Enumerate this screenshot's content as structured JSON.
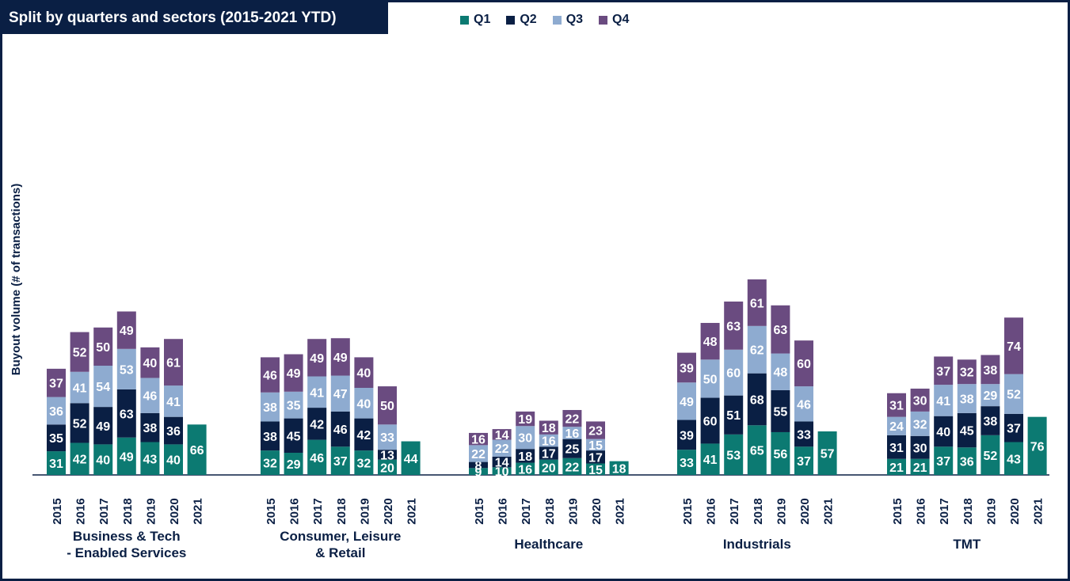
{
  "title": "Split by quarters and sectors (2015-2021 YTD)",
  "legend": [
    {
      "name": "Q1",
      "color": "#0c7a72"
    },
    {
      "name": "Q2",
      "color": "#0a1f44"
    },
    {
      "name": "Q3",
      "color": "#8eabd0"
    },
    {
      "name": "Q4",
      "color": "#6a4b80"
    }
  ],
  "chart_data": {
    "type": "bar",
    "stacked": true,
    "ylabel": "Buyout volume (# of transactions)",
    "years": [
      "2015",
      "2016",
      "2017",
      "2018",
      "2019",
      "2020",
      "2021"
    ],
    "groups": [
      {
        "label": "Business & Tech\n- Enabled Services",
        "values": {
          "Q1": [
            31,
            42,
            40,
            49,
            43,
            40,
            66
          ],
          "Q2": [
            35,
            52,
            49,
            63,
            38,
            36,
            null
          ],
          "Q3": [
            36,
            41,
            54,
            53,
            46,
            41,
            null
          ],
          "Q4": [
            37,
            52,
            50,
            49,
            40,
            61,
            null
          ]
        }
      },
      {
        "label": "Consumer, Leisure\n& Retail",
        "values": {
          "Q1": [
            32,
            29,
            46,
            37,
            32,
            20,
            44
          ],
          "Q2": [
            38,
            45,
            42,
            46,
            42,
            13,
            null
          ],
          "Q3": [
            38,
            35,
            41,
            47,
            40,
            33,
            null
          ],
          "Q4": [
            46,
            49,
            49,
            49,
            40,
            50,
            null
          ]
        }
      },
      {
        "label": "Healthcare",
        "values": {
          "Q1": [
            9,
            10,
            16,
            20,
            22,
            15,
            18
          ],
          "Q2": [
            8,
            14,
            18,
            17,
            25,
            17,
            null
          ],
          "Q3": [
            22,
            22,
            30,
            16,
            16,
            15,
            null
          ],
          "Q4": [
            16,
            14,
            19,
            18,
            22,
            23,
            null
          ]
        }
      },
      {
        "label": "Industrials",
        "values": {
          "Q1": [
            33,
            41,
            53,
            65,
            56,
            37,
            57
          ],
          "Q2": [
            39,
            60,
            51,
            68,
            55,
            33,
            null
          ],
          "Q3": [
            49,
            50,
            60,
            62,
            48,
            46,
            null
          ],
          "Q4": [
            39,
            48,
            63,
            61,
            63,
            60,
            null
          ]
        }
      },
      {
        "label": "TMT",
        "values": {
          "Q1": [
            21,
            21,
            37,
            36,
            52,
            43,
            76
          ],
          "Q2": [
            31,
            30,
            40,
            45,
            38,
            37,
            null
          ],
          "Q3": [
            24,
            32,
            41,
            38,
            29,
            52,
            null
          ],
          "Q4": [
            31,
            30,
            37,
            32,
            38,
            74,
            null
          ]
        }
      }
    ]
  }
}
